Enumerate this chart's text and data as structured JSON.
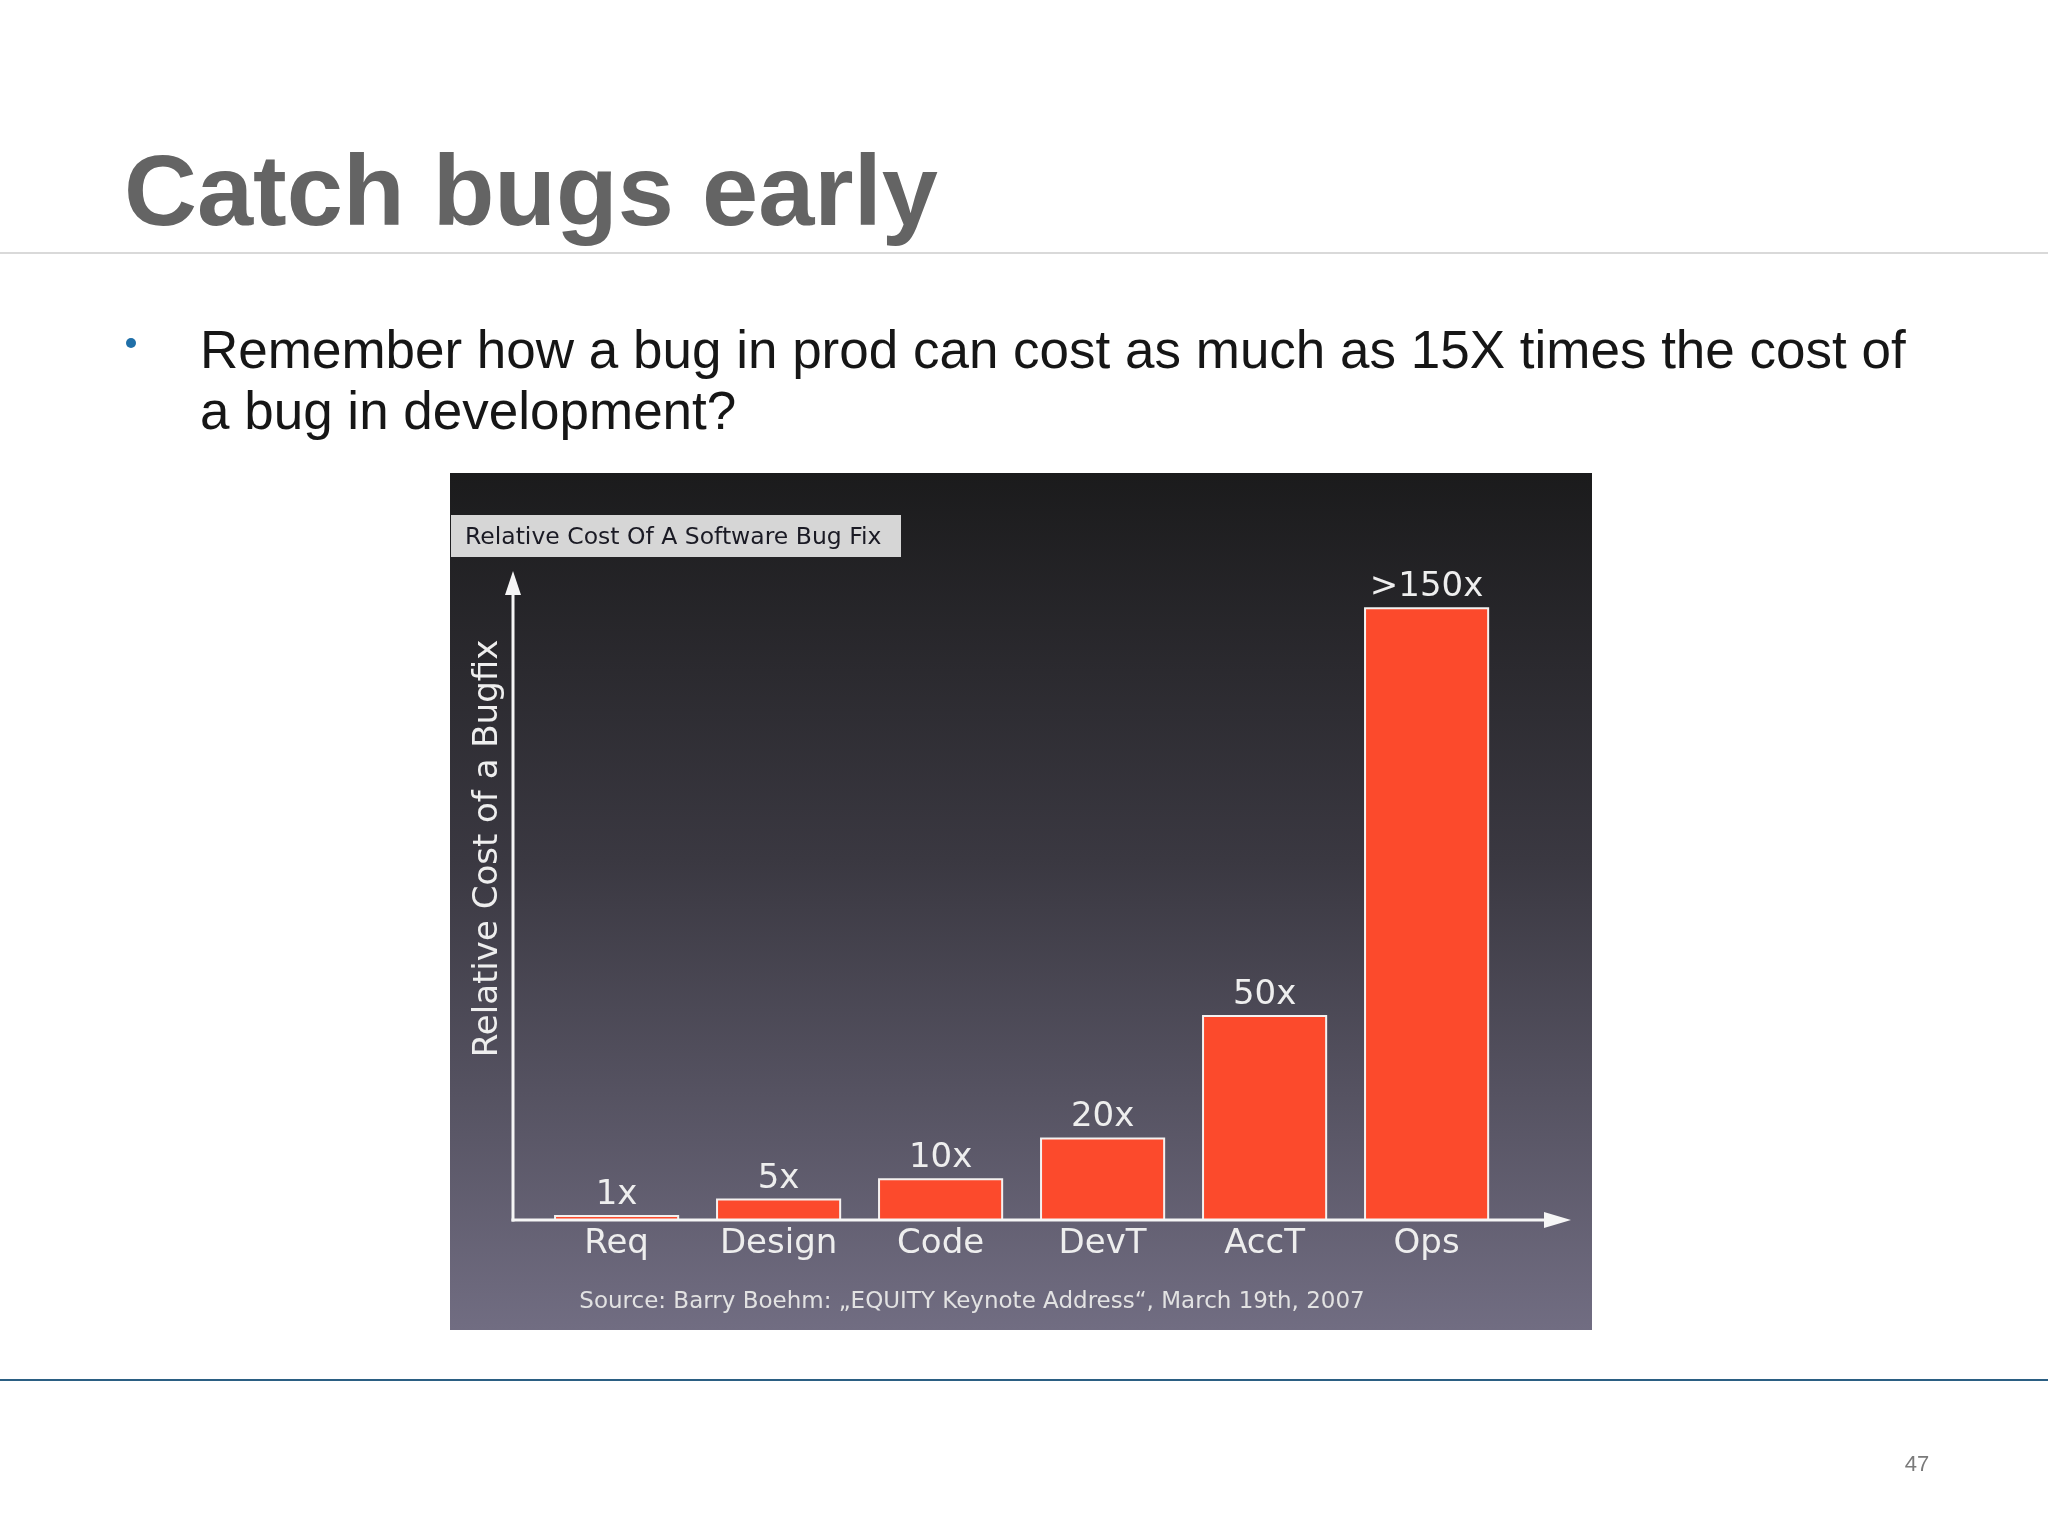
{
  "chart_data": {
    "type": "bar",
    "title": "Catch bugs early",
    "subtitle": "Remember how a bug in prod can cost as much as 15X times the cost of a bug in development?",
    "ylabel": "Relative Cost of a Bugfix",
    "categories": [
      "Req",
      "Design",
      "Code",
      "DevT",
      "AccT",
      "Ops"
    ],
    "values": [
      1,
      5,
      10,
      20,
      50,
      150
    ],
    "value_labels": [
      "1x",
      "5x",
      "10x",
      "20x",
      "50x",
      ">150x"
    ],
    "color": "#fc4a2c",
    "annotations": [
      "Relative Cost Of A Software Bug Fix",
      "Source: Barry Boehm: „EQUITY Keynote Address“, March 19th, 2007",
      "47"
    ]
  }
}
